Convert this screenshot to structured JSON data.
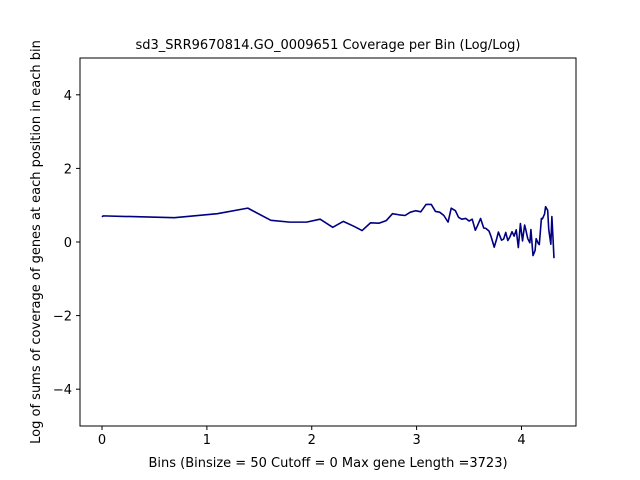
{
  "chart_data": {
    "type": "line",
    "title": "sd3_SRR9670814.GO_0009651 Coverage per Bin (Log/Log)",
    "xlabel": "Bins  (Binsize = 50 Cutoff = 0 Max gene Length =3723)",
    "ylabel": "Log of sums of coverage of genes at each position in each bin",
    "xlim": [
      -0.21,
      4.52
    ],
    "ylim": [
      -5,
      5
    ],
    "xticks": [
      0,
      1,
      2,
      3,
      4
    ],
    "xtick_labels": [
      "0",
      "1",
      "2",
      "3",
      "4"
    ],
    "yticks": [
      -4,
      -2,
      0,
      2,
      4
    ],
    "ytick_labels": [
      "−4",
      "−2",
      "0",
      "2",
      "4"
    ],
    "grid": false,
    "legend": "none",
    "line_color": "#000080",
    "series": [
      {
        "x": [
          0,
          0.01,
          0.69,
          1.1,
          1.39,
          1.61,
          1.79,
          1.95,
          2.08,
          2.2,
          2.3,
          2.4,
          2.48,
          2.56,
          2.64,
          2.71,
          2.77,
          2.83,
          2.89,
          2.94,
          2.99,
          3.04,
          3.09,
          3.14,
          3.18,
          3.22,
          3.26,
          3.3,
          3.33,
          3.37,
          3.4,
          3.43,
          3.47,
          3.5,
          3.53,
          3.56,
          3.58,
          3.61,
          3.64,
          3.66,
          3.69,
          3.71,
          3.74,
          3.76,
          3.78,
          3.81,
          3.83,
          3.85,
          3.87,
          3.89,
          3.91,
          3.93,
          3.95,
          3.97,
          3.99,
          4.01,
          4.03,
          4.04,
          4.06,
          4.08,
          4.09,
          4.11,
          4.13,
          4.14,
          4.16,
          4.17,
          4.19,
          4.2,
          4.22,
          4.23,
          4.25,
          4.26,
          4.28,
          4.29,
          4.3,
          4.31
        ],
        "y": [
          0.68,
          0.71,
          0.66,
          0.77,
          0.92,
          0.59,
          0.54,
          0.54,
          0.62,
          0.4,
          0.56,
          0.43,
          0.31,
          0.52,
          0.51,
          0.58,
          0.77,
          0.74,
          0.72,
          0.81,
          0.85,
          0.82,
          1.02,
          1.02,
          0.83,
          0.81,
          0.72,
          0.54,
          0.92,
          0.85,
          0.67,
          0.62,
          0.64,
          0.57,
          0.62,
          0.32,
          0.44,
          0.64,
          0.38,
          0.37,
          0.3,
          0.15,
          -0.14,
          0.05,
          0.27,
          0.05,
          0.08,
          0.26,
          0.04,
          0.14,
          0.28,
          0.16,
          0.33,
          -0.15,
          0.5,
          0.03,
          0.46,
          0.35,
          0.09,
          -0.02,
          0.34,
          -0.37,
          -0.23,
          0.09,
          -0.04,
          -0.07,
          0.64,
          0.63,
          0.76,
          0.96,
          0.86,
          0.34,
          -0.06,
          0.69,
          0.15,
          -0.44
        ]
      }
    ]
  }
}
